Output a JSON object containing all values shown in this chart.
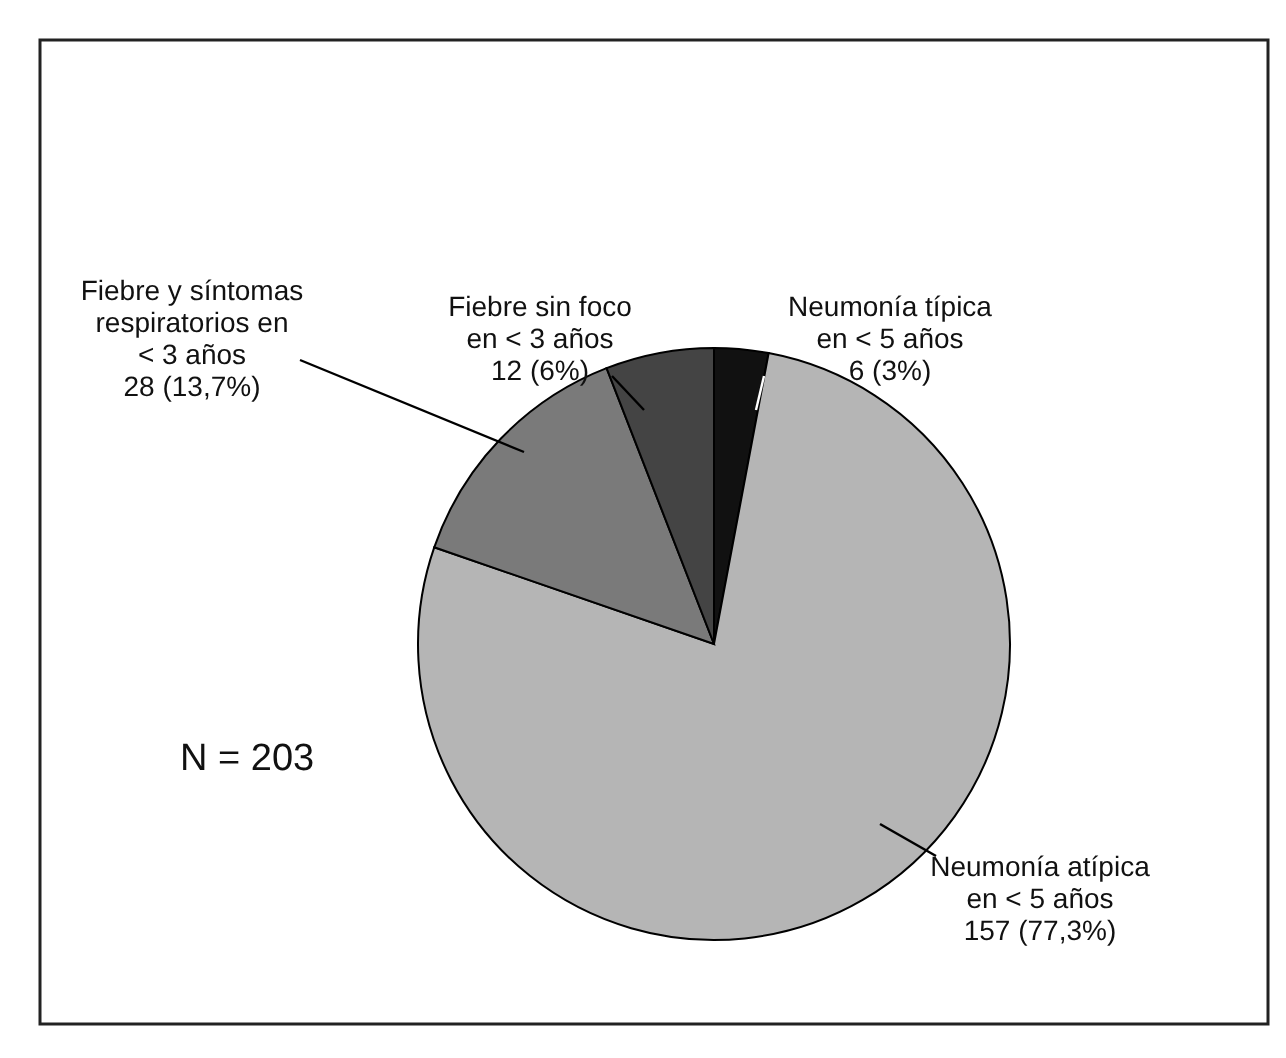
{
  "chart_data": {
    "type": "pie",
    "categories": [
      "Neumonía típica en < 5 años",
      "Neumonía atípica en < 5 años",
      "Fiebre y síntomas respiratorios en < 3 años",
      "Fiebre sin foco en < 3 años"
    ],
    "values": [
      6,
      157,
      28,
      12
    ],
    "value_labels": [
      "6 (3%)",
      "157 (77,3%)",
      "28 (13,7%)",
      "12 (6%)"
    ],
    "colors": [
      "#111111",
      "#b5b5b5",
      "#7a7a7a",
      "#444444"
    ],
    "annotations": [
      "N = 203"
    ]
  }
}
